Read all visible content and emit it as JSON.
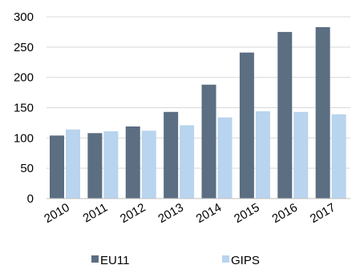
{
  "chart_data": {
    "type": "bar",
    "categories": [
      "2010",
      "2011",
      "2012",
      "2013",
      "2014",
      "2015",
      "2016",
      "2017"
    ],
    "series": [
      {
        "name": "EU11",
        "values": [
          104,
          108,
          119,
          143,
          188,
          241,
          275,
          283
        ]
      },
      {
        "name": "GIPS",
        "values": [
          114,
          111,
          112,
          121,
          134,
          144,
          143,
          139
        ]
      }
    ],
    "ylim": [
      0,
      300
    ],
    "yticks": [
      0,
      50,
      100,
      150,
      200,
      250,
      300
    ],
    "grid": true,
    "legend_position": "bottom",
    "colors": {
      "EU11": "#5b6e82",
      "GIPS": "#b8d4ee",
      "grid": "#d9d9d9",
      "axis": "#bfbfbf"
    }
  }
}
